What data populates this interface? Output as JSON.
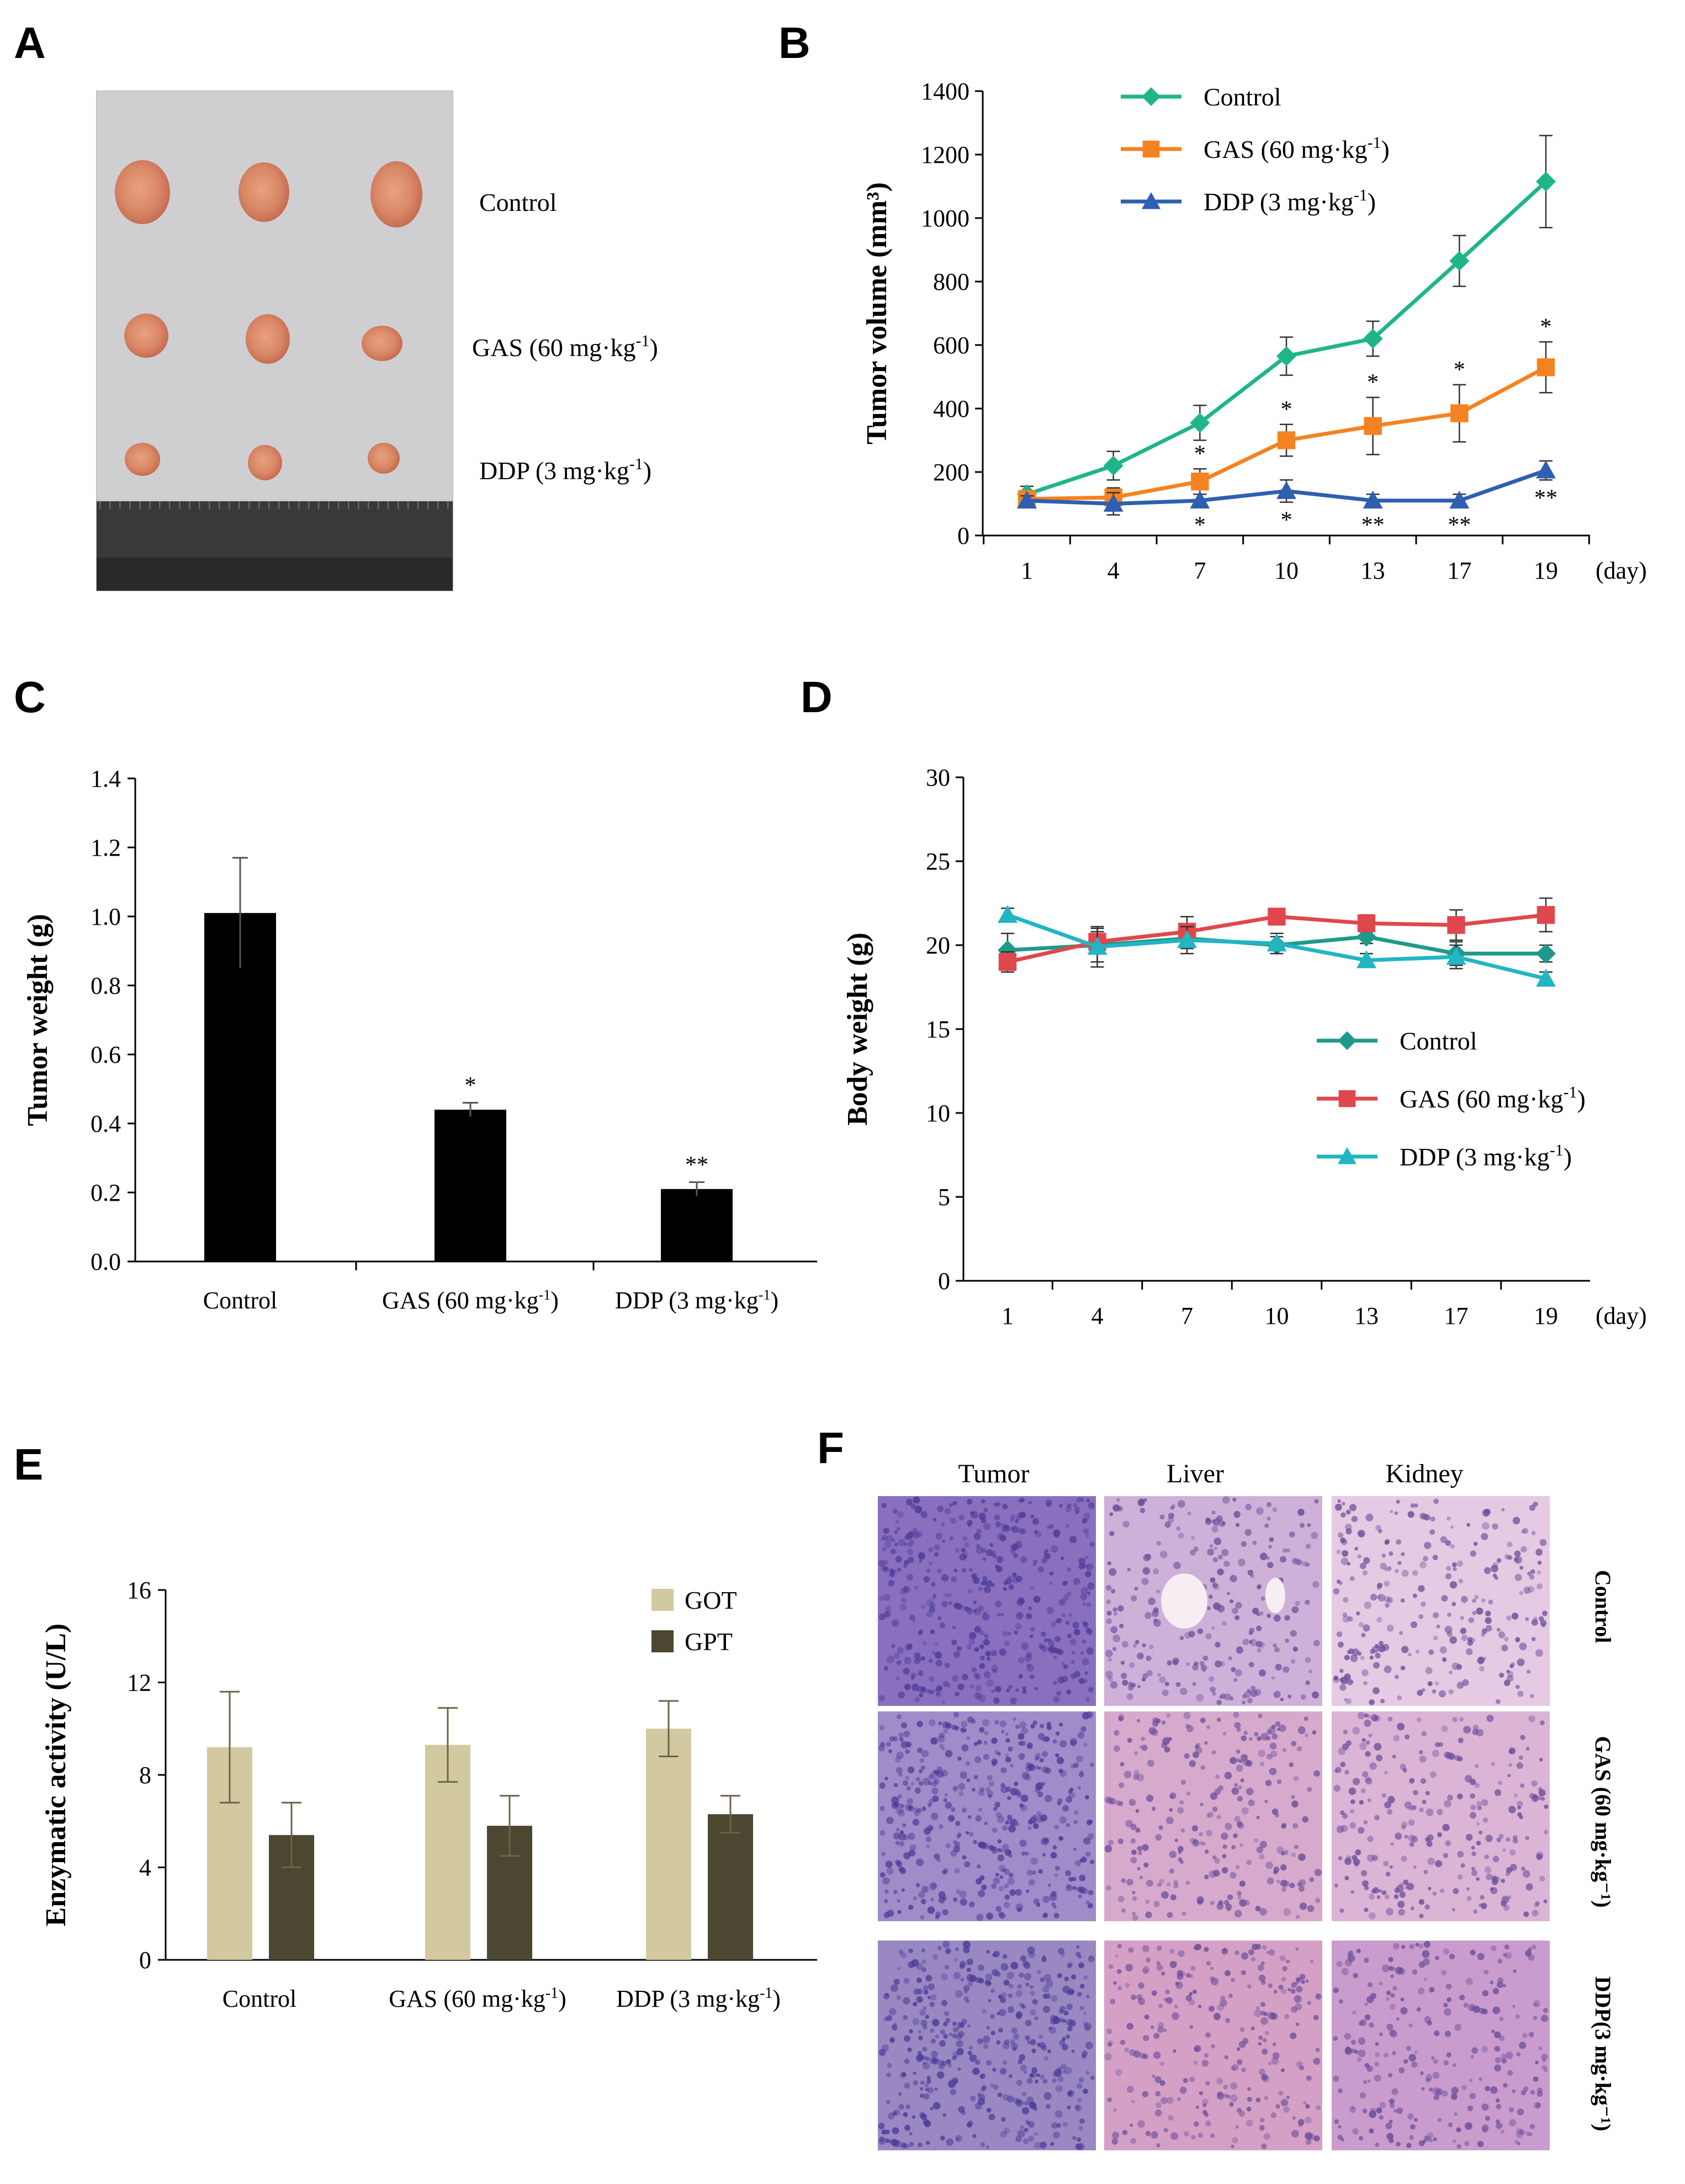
{
  "panels": {
    "A": {
      "label": "A",
      "rows": [
        {
          "label": "Control"
        },
        {
          "label": "GAS (60 mg·kg",
          "sup": "-1",
          "close": ")"
        },
        {
          "label": "DDP (3 mg·kg",
          "sup": "-1",
          "close": ")"
        }
      ]
    },
    "B": {
      "label": "B"
    },
    "C": {
      "label": "C"
    },
    "D": {
      "label": "D"
    },
    "E": {
      "label": "E"
    },
    "F": {
      "label": "F",
      "columns": [
        "Tumor",
        "Liver",
        "Kidney"
      ],
      "rows": [
        "Control",
        "GAS (60 mg·kg⁻¹)",
        "DDP(3 mg·kg⁻¹)"
      ]
    }
  },
  "chart_data": [
    {
      "id": "B",
      "type": "line",
      "title": "",
      "ylabel": "Tumor volume (mm³)",
      "xlabel": "(day)",
      "x": [
        1,
        4,
        7,
        10,
        13,
        17,
        19
      ],
      "ylim": [
        0,
        1400
      ],
      "yticks": [
        0,
        200,
        400,
        600,
        800,
        1000,
        1200,
        1400
      ],
      "legend": "top-center",
      "series": [
        {
          "name": "Control",
          "color": "#1fb58a",
          "marker": "diamond",
          "values": [
            130,
            220,
            355,
            565,
            620,
            865,
            1115
          ],
          "errors": [
            25,
            45,
            55,
            60,
            55,
            80,
            145
          ]
        },
        {
          "name": "GAS (60 mg·kg⁻¹)",
          "color": "#f58220",
          "marker": "square",
          "values": [
            115,
            120,
            170,
            300,
            345,
            385,
            530
          ],
          "errors": [
            20,
            30,
            40,
            50,
            90,
            90,
            80
          ],
          "sig": [
            "",
            "",
            "*",
            "*",
            "*",
            "*",
            "*"
          ]
        },
        {
          "name": "DDP (3 mg·kg⁻¹)",
          "color": "#2e5fb0",
          "marker": "triangle",
          "values": [
            110,
            100,
            110,
            140,
            110,
            110,
            205
          ],
          "errors": [
            15,
            35,
            20,
            35,
            20,
            20,
            30
          ],
          "sig": [
            "",
            "",
            "*",
            "*",
            "**",
            "**",
            "**"
          ]
        }
      ]
    },
    {
      "id": "C",
      "type": "bar",
      "title": "",
      "ylabel": "Tumor weight (g)",
      "xlabel": "",
      "categories": [
        "Control",
        "GAS (60 mg·kg⁻¹)",
        "DDP (3 mg·kg⁻¹)"
      ],
      "values": [
        1.01,
        0.44,
        0.21
      ],
      "errors": [
        0.16,
        0.02,
        0.02
      ],
      "sig": [
        "",
        "*",
        "**"
      ],
      "ylim": [
        0,
        1.4
      ],
      "yticks": [
        "0.0",
        "0.2",
        "0.4",
        "0.6",
        "0.8",
        "1.0",
        "1.2",
        "1.4"
      ],
      "color": "#000000"
    },
    {
      "id": "D",
      "type": "line",
      "title": "",
      "ylabel": "Body weight (g)",
      "xlabel": "(day)",
      "x": [
        1,
        4,
        7,
        10,
        13,
        17,
        19
      ],
      "ylim": [
        0,
        30
      ],
      "yticks": [
        0,
        5,
        10,
        15,
        20,
        25,
        30
      ],
      "legend": "right",
      "series": [
        {
          "name": "Control",
          "color": "#1f9a8a",
          "marker": "diamond",
          "values": [
            19.7,
            20.0,
            20.4,
            20.0,
            20.5,
            19.5,
            19.5
          ],
          "errors": [
            1.0,
            1.0,
            0.6,
            0.5,
            0.4,
            0.7,
            0.5
          ]
        },
        {
          "name": "GAS (60 mg·kg⁻¹)",
          "color": "#e0474c",
          "marker": "square",
          "values": [
            19.0,
            20.2,
            20.8,
            21.7,
            21.3,
            21.2,
            21.8
          ],
          "errors": [
            0.6,
            0.6,
            0.9,
            0.3,
            0.5,
            0.9,
            1.0
          ]
        },
        {
          "name": "DDP (3 mg·kg⁻¹)",
          "color": "#22b5c2",
          "marker": "triangle",
          "values": [
            21.8,
            19.9,
            20.3,
            20.1,
            19.1,
            19.3,
            18.0
          ],
          "errors": [
            0.4,
            1.2,
            0.8,
            0.6,
            0.4,
            0.7,
            0.4
          ]
        }
      ]
    },
    {
      "id": "E",
      "type": "bar",
      "title": "",
      "ylabel": "Enzymatic activity (U/L)",
      "xlabel": "",
      "categories": [
        "Control",
        "GAS (60 mg·kg⁻¹)",
        "DDP (3 mg·kg⁻¹)"
      ],
      "ylim": [
        0,
        16
      ],
      "yticks": [
        0,
        4,
        8,
        12,
        16
      ],
      "legend": "top-right",
      "series": [
        {
          "name": "GOT",
          "color": "#d2c9a0",
          "values": [
            9.2,
            9.3,
            10.0
          ],
          "errors": [
            2.4,
            1.6,
            1.2
          ]
        },
        {
          "name": "GPT",
          "color": "#4b4730",
          "values": [
            5.4,
            5.8,
            6.3
          ],
          "errors": [
            1.4,
            1.3,
            0.8
          ]
        }
      ]
    }
  ]
}
